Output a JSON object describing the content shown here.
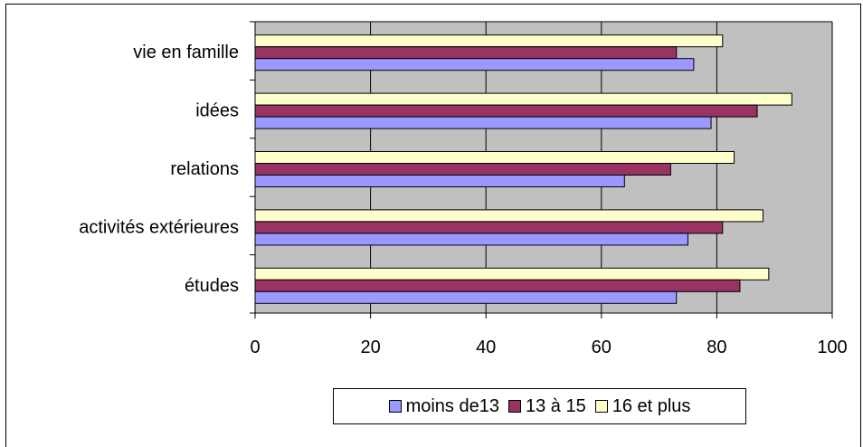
{
  "chart_data": {
    "type": "bar",
    "orientation": "horizontal",
    "categories": [
      "études",
      "activités extérieures",
      "relations",
      "idées",
      "vie en famille"
    ],
    "series": [
      {
        "name": "moins de13",
        "color": "#9999ff",
        "values": [
          73,
          75,
          64,
          79,
          76
        ]
      },
      {
        "name": "13 à 15",
        "color": "#993366",
        "values": [
          84,
          81,
          72,
          87,
          73
        ]
      },
      {
        "name": "16 et plus",
        "color": "#ffffcc",
        "values": [
          89,
          88,
          83,
          93,
          81
        ]
      }
    ],
    "xlim": [
      0,
      100
    ],
    "x_ticks": [
      "0",
      "20",
      "40",
      "60",
      "80",
      "100"
    ],
    "plot_background": "#c0c0c0",
    "grid": "vertical",
    "legend_position": "bottom"
  }
}
